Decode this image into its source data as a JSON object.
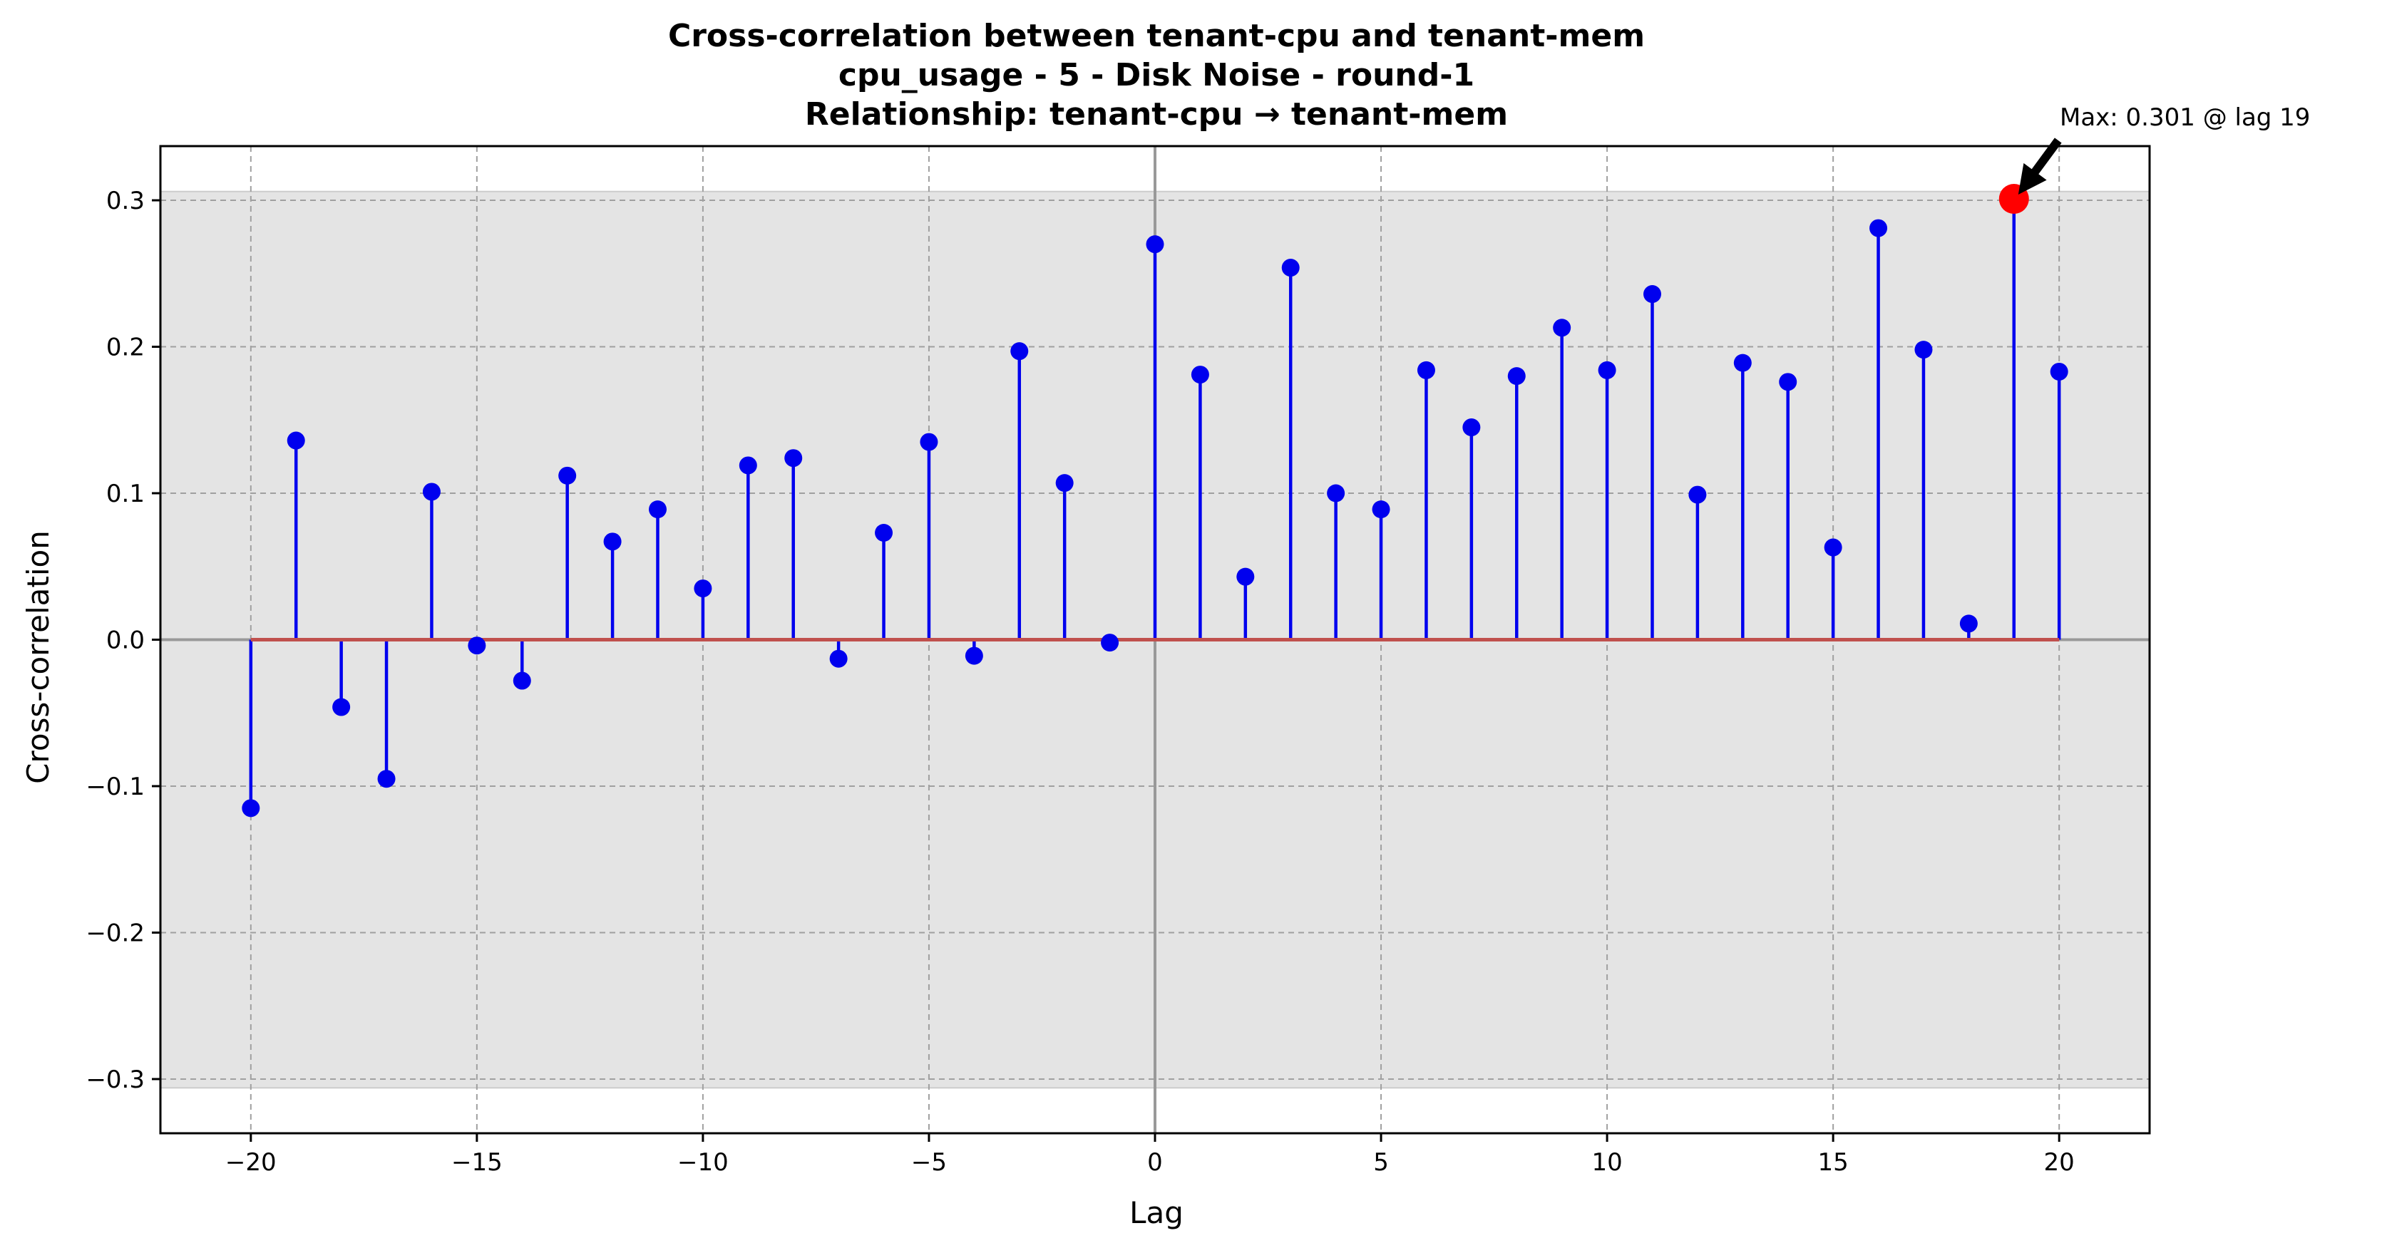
{
  "chart_data": {
    "type": "stem",
    "title": [
      "Cross-correlation between tenant-cpu and tenant-mem",
      "cpu_usage - 5 - Disk Noise - round-1",
      "Relationship: tenant-cpu → tenant-mem"
    ],
    "xlabel": "Lag",
    "ylabel": "Cross-correlation",
    "xlim": [
      -22,
      22
    ],
    "ylim": [
      -0.337,
      0.337
    ],
    "xticks": [
      -20,
      -15,
      -10,
      -5,
      0,
      5,
      10,
      15,
      20
    ],
    "xtick_labels": [
      "−20",
      "−15",
      "−10",
      "−5",
      "0",
      "5",
      "10",
      "15",
      "20"
    ],
    "yticks": [
      -0.3,
      -0.2,
      -0.1,
      0.0,
      0.1,
      0.2,
      0.3
    ],
    "ytick_labels": [
      "−0.3",
      "−0.2",
      "−0.1",
      "0.0",
      "0.1",
      "0.2",
      "0.3"
    ],
    "grid": true,
    "confidence_band": [
      -0.306,
      0.306
    ],
    "lags": [
      -20,
      -19,
      -18,
      -17,
      -16,
      -15,
      -14,
      -13,
      -12,
      -11,
      -10,
      -9,
      -8,
      -7,
      -6,
      -5,
      -4,
      -3,
      -2,
      -1,
      0,
      1,
      2,
      3,
      4,
      5,
      6,
      7,
      8,
      9,
      10,
      11,
      12,
      13,
      14,
      15,
      16,
      17,
      18,
      19,
      20
    ],
    "values": [
      -0.115,
      0.136,
      -0.046,
      -0.095,
      0.101,
      -0.004,
      -0.028,
      0.112,
      0.067,
      0.089,
      0.035,
      0.119,
      0.124,
      -0.013,
      0.073,
      0.135,
      -0.011,
      0.197,
      0.107,
      -0.002,
      0.27,
      0.181,
      0.043,
      0.254,
      0.1,
      0.089,
      0.184,
      0.145,
      0.18,
      0.213,
      0.184,
      0.236,
      0.099,
      0.189,
      0.176,
      0.063,
      0.281,
      0.198,
      0.011,
      0.301,
      0.183
    ],
    "max_point": {
      "lag": 19,
      "value": 0.301
    },
    "annotation": "Max: 0.301 @ lag 19",
    "colors": {
      "stem": "#0000ee",
      "marker": "#0000ee",
      "baseline": "#c0504d",
      "max_marker": "#ff0000",
      "band": "#e4e4e4"
    }
  }
}
